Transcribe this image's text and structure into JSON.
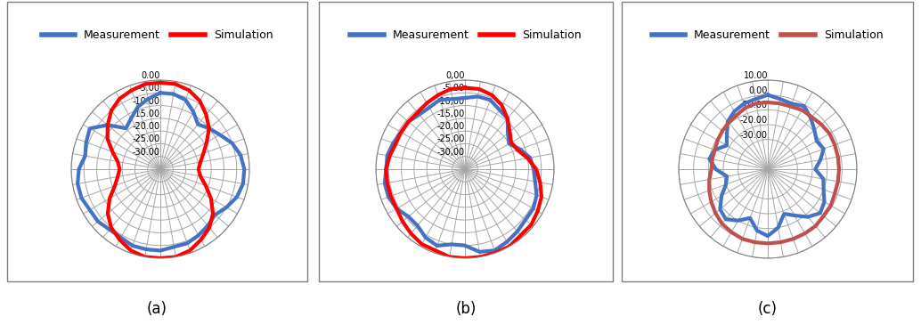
{
  "chart_data": [
    {
      "type": "radar",
      "caption": "(a)",
      "legend": "upper center",
      "grid": true,
      "tick_labels": "y",
      "x": [
        0,
        10,
        20,
        30,
        40,
        50,
        60,
        70,
        80,
        90,
        100,
        110,
        120,
        130,
        140,
        150,
        160,
        170,
        180,
        190,
        200,
        210,
        220,
        230,
        240,
        250,
        260,
        270,
        280,
        290,
        300,
        310,
        320,
        330,
        340,
        350
      ],
      "xlim": [
        0,
        360
      ],
      "xticks": [
        0,
        10,
        20,
        30,
        40,
        50,
        60,
        70,
        80,
        90,
        100,
        110,
        120,
        130,
        140,
        150,
        160,
        170,
        180,
        190,
        200,
        210,
        220,
        230,
        240,
        250,
        260,
        270,
        280,
        290,
        300,
        310,
        320,
        330,
        340,
        350
      ],
      "ylim": [
        -35,
        0
      ],
      "yticks": [
        {
          "value": 0,
          "label": "0.00"
        },
        {
          "value": -5,
          "label": "-5.00"
        },
        {
          "value": -10,
          "label": "-10.00"
        },
        {
          "value": -15,
          "label": "-15.00"
        },
        {
          "value": -20,
          "label": "-20.00"
        },
        {
          "value": -25,
          "label": "-25.00"
        },
        {
          "value": -30,
          "label": "-30.00"
        }
      ],
      "series": [
        {
          "name": "Measurement",
          "color": "#4472c4",
          "values": [
            -5,
            -5,
            -6,
            -9,
            -12,
            -10,
            -8,
            -5,
            -3,
            -2,
            -2,
            -3,
            -5,
            -7,
            -6,
            -5,
            -4,
            -4,
            -3,
            -3,
            -3,
            -4,
            -4,
            -3,
            -3,
            -2,
            -2,
            -3,
            -5,
            -4,
            -3,
            -8,
            -14,
            -12,
            -9,
            -7
          ]
        },
        {
          "name": "Simulation",
          "color": "#ff0000",
          "values": [
            -1,
            -1,
            -2,
            -4,
            -7,
            -10,
            -14,
            -17,
            -19,
            -20,
            -19,
            -16,
            -12,
            -8,
            -5,
            -3,
            -1,
            0,
            0,
            0,
            -1,
            -3,
            -5,
            -8,
            -12,
            -16,
            -18,
            -19,
            -18,
            -15,
            -11,
            -8,
            -5,
            -3,
            -2,
            -1
          ]
        }
      ]
    },
    {
      "type": "radar",
      "caption": "(b)",
      "legend": "upper center",
      "grid": true,
      "tick_labels": "y",
      "x": [
        0,
        10,
        20,
        30,
        40,
        50,
        60,
        70,
        80,
        90,
        100,
        110,
        120,
        130,
        140,
        150,
        160,
        170,
        180,
        190,
        200,
        210,
        220,
        230,
        240,
        250,
        260,
        270,
        280,
        290,
        300,
        310,
        320,
        330,
        340,
        350
      ],
      "xlim": [
        0,
        360
      ],
      "xticks": [
        0,
        10,
        20,
        30,
        40,
        50,
        60,
        70,
        80,
        90,
        100,
        110,
        120,
        130,
        140,
        150,
        160,
        170,
        180,
        190,
        200,
        210,
        220,
        230,
        240,
        250,
        260,
        270,
        280,
        290,
        300,
        310,
        320,
        330,
        340,
        350
      ],
      "ylim": [
        -35,
        0
      ],
      "yticks": [
        {
          "value": 0,
          "label": "0,00"
        },
        {
          "value": -5,
          "label": "-5,00"
        },
        {
          "value": -10,
          "label": "-10,00"
        },
        {
          "value": -15,
          "label": "-15,00"
        },
        {
          "value": -20,
          "label": "-20,00"
        },
        {
          "value": -25,
          "label": "-25,00"
        },
        {
          "value": -30,
          "label": "-30,00"
        }
      ],
      "series": [
        {
          "name": "Measurement",
          "color": "#4472c4",
          "values": [
            -7,
            -6,
            -6,
            -8,
            -9,
            -13,
            -15,
            -12,
            -9,
            -8,
            -7,
            -5,
            -4,
            -4,
            -3,
            -2,
            -1,
            -2,
            -5,
            -5,
            -3,
            -4,
            -6,
            -6,
            -4,
            -3,
            -3,
            -4,
            -4,
            -5,
            -6,
            -6,
            -7,
            -7,
            -6,
            -7
          ]
        },
        {
          "name": "Simulation",
          "color": "#ff0000",
          "values": [
            -3,
            -3,
            -4,
            -6,
            -9,
            -12,
            -14,
            -13,
            -10,
            -7,
            -5,
            -3,
            -2,
            -1,
            -1,
            0,
            0,
            0,
            0,
            0,
            -1,
            -1,
            -2,
            -3,
            -4,
            -4,
            -4,
            -4,
            -5,
            -6,
            -6,
            -6,
            -6,
            -5,
            -4,
            -3
          ]
        }
      ]
    },
    {
      "type": "radar",
      "caption": "(c)",
      "legend": "upper center",
      "grid": true,
      "tick_labels": "y",
      "x": [
        0,
        10,
        20,
        30,
        40,
        50,
        60,
        70,
        80,
        90,
        100,
        110,
        120,
        130,
        140,
        150,
        160,
        170,
        180,
        190,
        200,
        210,
        220,
        230,
        240,
        250,
        260,
        270,
        280,
        290,
        300,
        310,
        320,
        330,
        340,
        350
      ],
      "xlim": [
        0,
        360
      ],
      "xticks": [
        0,
        10,
        20,
        30,
        40,
        50,
        60,
        70,
        80,
        90,
        100,
        110,
        120,
        130,
        140,
        150,
        160,
        170,
        180,
        190,
        200,
        210,
        220,
        230,
        240,
        250,
        260,
        270,
        280,
        290,
        300,
        310,
        320,
        330,
        340,
        350
      ],
      "ylim": [
        -50,
        10
      ],
      "yticks": [
        {
          "value": 10,
          "label": "10.00"
        },
        {
          "value": 0,
          "label": "0.00"
        },
        {
          "value": -10,
          "label": "-10.00"
        },
        {
          "value": -20,
          "label": "-20.00"
        },
        {
          "value": -30,
          "label": "-30.00"
        }
      ],
      "series": [
        {
          "name": "Measurement",
          "color": "#4472c4",
          "values": [
            0,
            -2,
            -3,
            -1,
            -5,
            -9,
            -12,
            -10,
            -14,
            -18,
            -12,
            -10,
            -6,
            -4,
            -8,
            -14,
            -18,
            -10,
            -5,
            -8,
            -15,
            -10,
            -6,
            -8,
            -14,
            -20,
            -22,
            -15,
            -10,
            -12,
            -18,
            -14,
            -8,
            -5,
            -3,
            -2
          ]
        },
        {
          "name": "Simulation",
          "color": "#c0504d",
          "values": [
            -5,
            -5,
            -5,
            -4,
            -4,
            -3,
            -2,
            -2,
            -2,
            -2,
            -2,
            -2,
            -1,
            -1,
            0,
            0,
            0,
            0,
            0,
            0,
            0,
            -1,
            -2,
            -4,
            -6,
            -8,
            -10,
            -12,
            -12,
            -12,
            -11,
            -10,
            -9,
            -8,
            -6,
            -5
          ]
        }
      ]
    }
  ]
}
